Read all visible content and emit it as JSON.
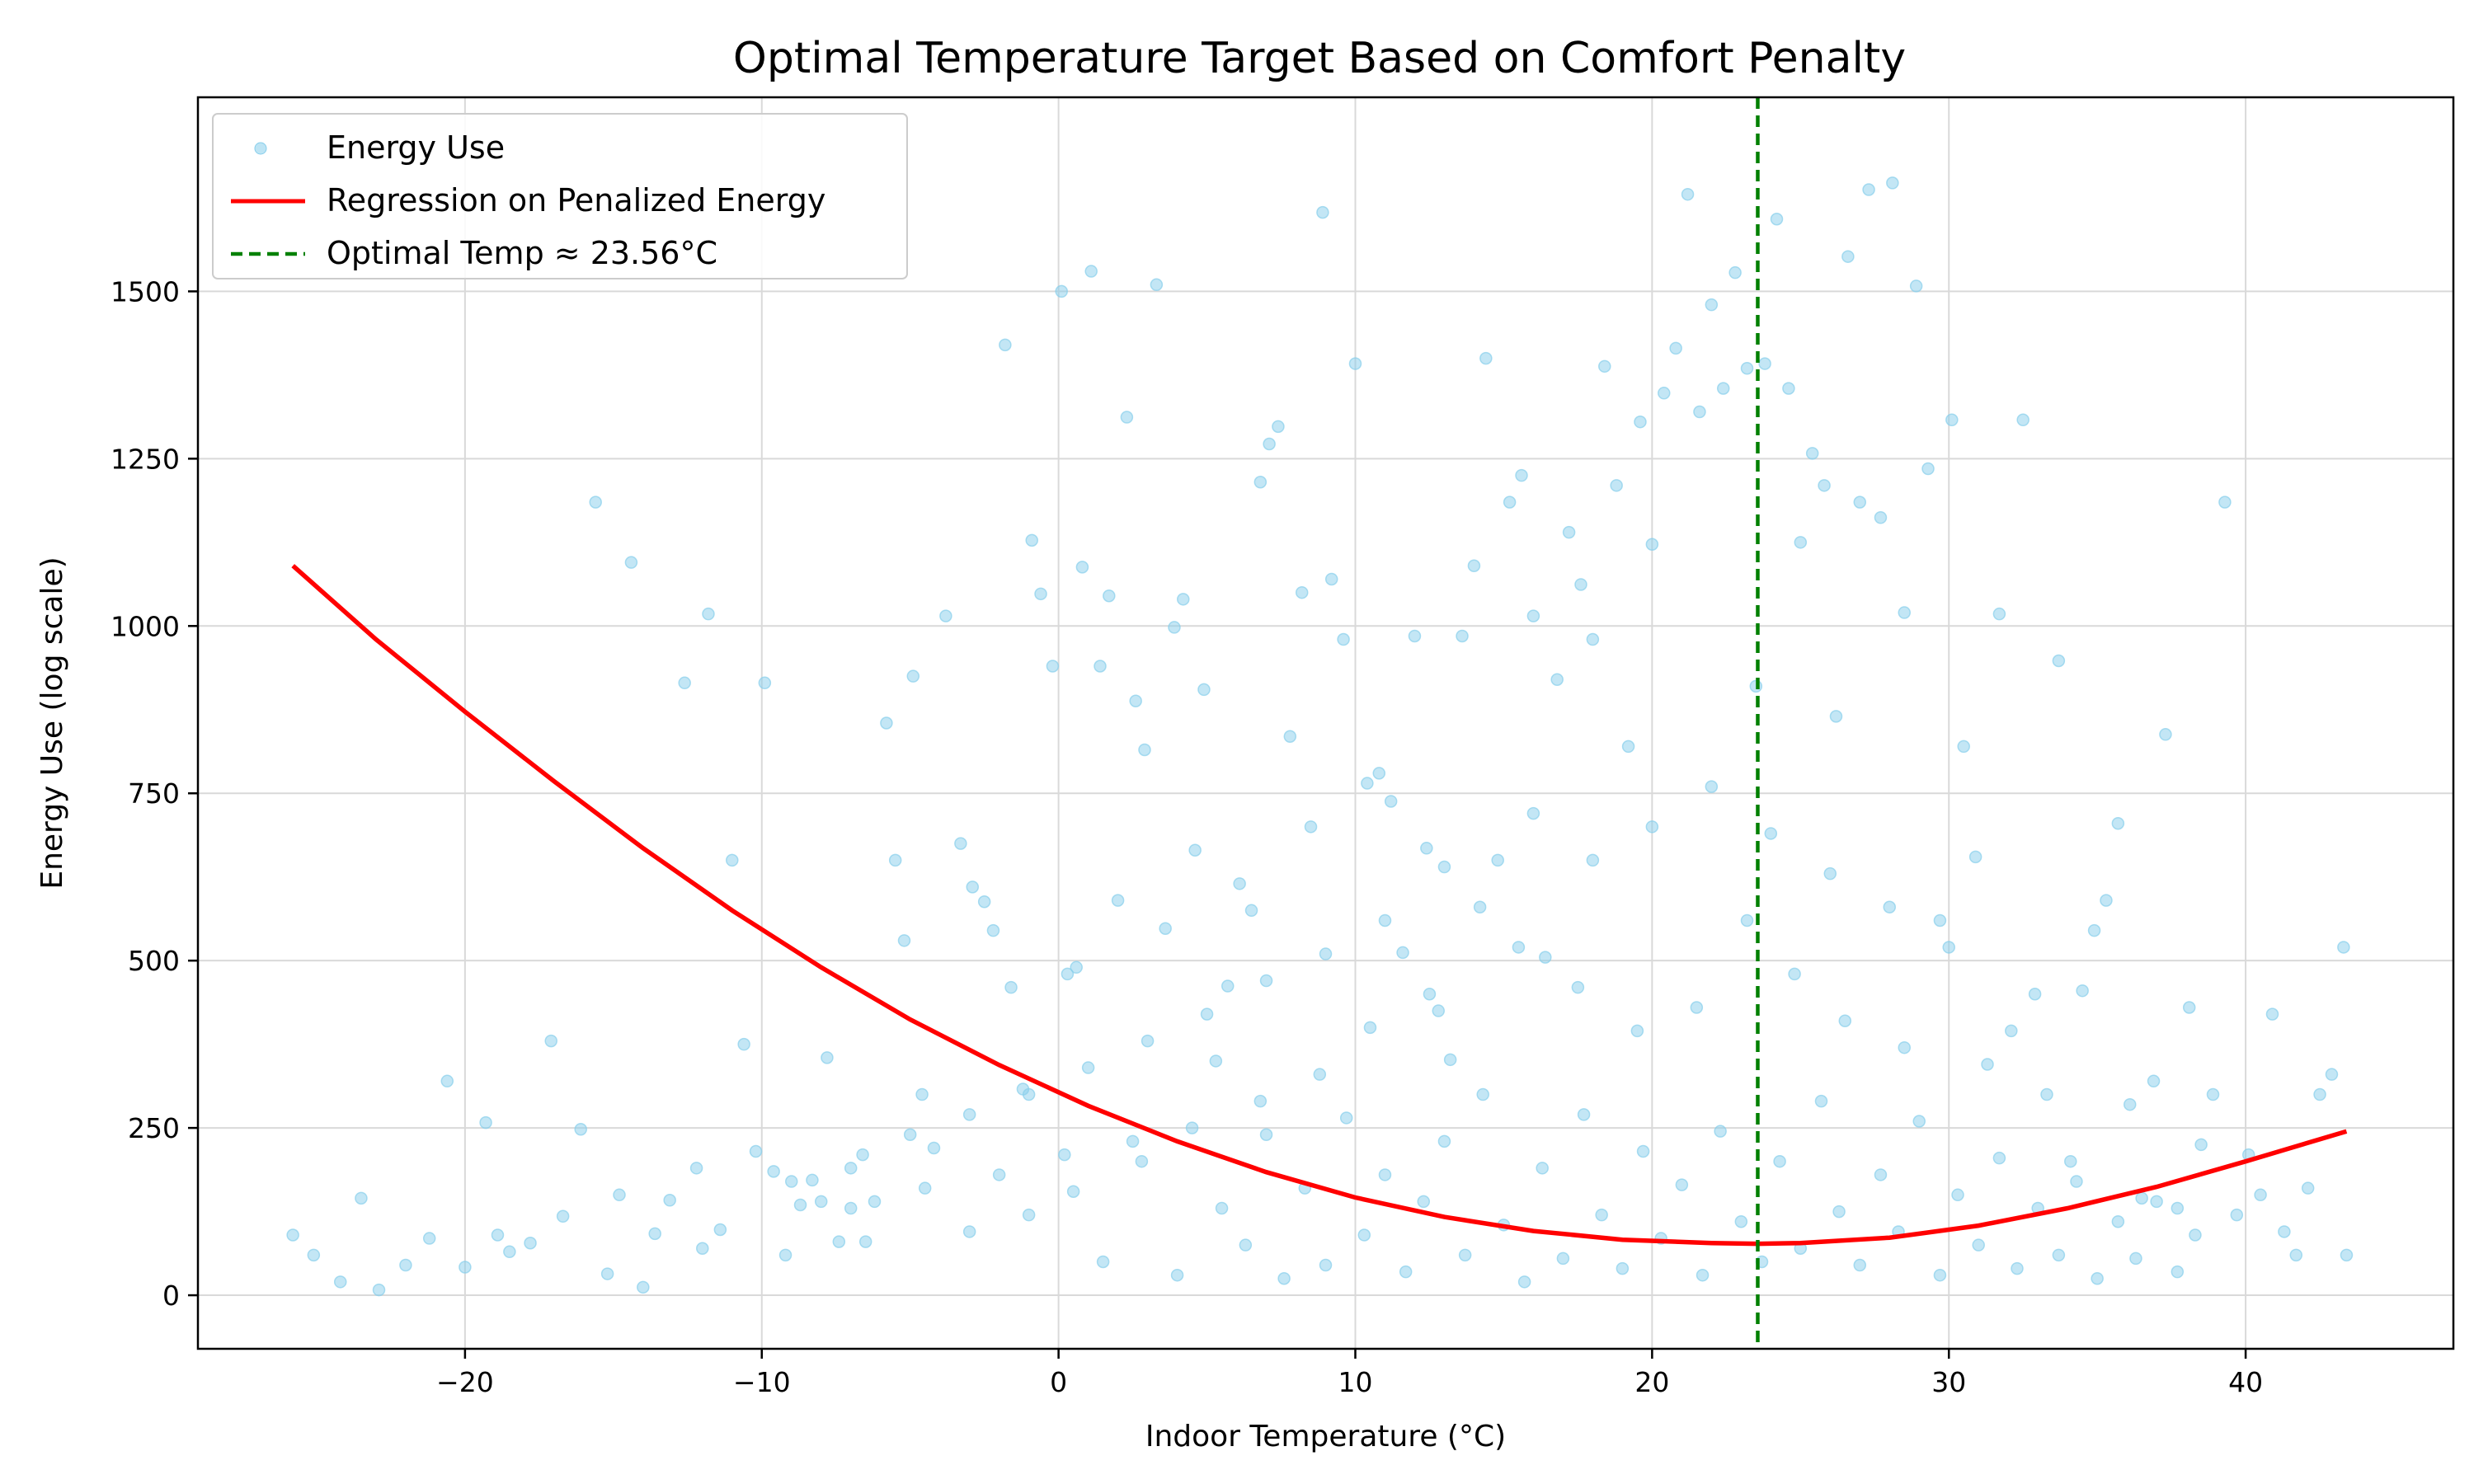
{
  "chart_data": {
    "type": "scatter",
    "title": "Optimal Temperature Target Based on Comfort Penalty",
    "xlabel": "Indoor Temperature (°C)",
    "ylabel": "Energy Use (log scale)",
    "xlim": [
      -29,
      47
    ],
    "ylim": [
      -80,
      1790
    ],
    "x_ticks": [
      -20,
      -10,
      0,
      10,
      20,
      30,
      40
    ],
    "x_tick_labels": [
      "−20",
      "−10",
      "0",
      "10",
      "20",
      "30",
      "40"
    ],
    "y_ticks": [
      0,
      250,
      500,
      750,
      1000,
      1250,
      1500
    ],
    "y_tick_labels": [
      "0",
      "250",
      "500",
      "750",
      "1000",
      "1250",
      "1500"
    ],
    "grid": true,
    "legend_position": "top-left",
    "legend": [
      {
        "label": "Energy Use",
        "kind": "scatter",
        "color": "#87CEEB"
      },
      {
        "label": "Regression on Penalized Energy",
        "kind": "line",
        "color": "#ff0000"
      },
      {
        "label": "Optimal Temp ≈ 23.56°C",
        "kind": "dashed",
        "color": "#008000"
      }
    ],
    "series": [
      {
        "name": "Energy Use",
        "type": "scatter",
        "color": "#87CEEB",
        "points": [
          [
            -25.8,
            90
          ],
          [
            -25.1,
            60
          ],
          [
            -24.2,
            20
          ],
          [
            -23.5,
            145
          ],
          [
            -22.9,
            8
          ],
          [
            -22.0,
            45
          ],
          [
            -21.2,
            85
          ],
          [
            -20.6,
            320
          ],
          [
            -20.0,
            42
          ],
          [
            -19.3,
            258
          ],
          [
            -18.9,
            90
          ],
          [
            -18.5,
            65
          ],
          [
            -17.8,
            78
          ],
          [
            -17.1,
            380
          ],
          [
            -16.7,
            118
          ],
          [
            -16.1,
            248
          ],
          [
            -15.6,
            1185
          ],
          [
            -15.2,
            32
          ],
          [
            -14.8,
            150
          ],
          [
            -14.4,
            1095
          ],
          [
            -14.0,
            12
          ],
          [
            -13.6,
            92
          ],
          [
            -13.1,
            142
          ],
          [
            -12.6,
            915
          ],
          [
            -12.2,
            190
          ],
          [
            -11.8,
            1018
          ],
          [
            -11.4,
            98
          ],
          [
            -11.0,
            650
          ],
          [
            -10.6,
            375
          ],
          [
            -10.2,
            215
          ],
          [
            -9.9,
            915
          ],
          [
            -9.6,
            185
          ],
          [
            -9.2,
            60
          ],
          [
            -8.7,
            135
          ],
          [
            -8.3,
            172
          ],
          [
            -7.8,
            355
          ],
          [
            -7.4,
            80
          ],
          [
            -7.0,
            130
          ],
          [
            -6.6,
            210
          ],
          [
            -6.2,
            140
          ],
          [
            -5.8,
            855
          ],
          [
            -5.5,
            650
          ],
          [
            -5.2,
            530
          ],
          [
            -4.9,
            925
          ],
          [
            -4.6,
            300
          ],
          [
            -4.2,
            220
          ],
          [
            -3.8,
            1015
          ],
          [
            -3.3,
            675
          ],
          [
            -2.9,
            610
          ],
          [
            -2.5,
            588
          ],
          [
            -2.2,
            545
          ],
          [
            -1.8,
            1420
          ],
          [
            -1.6,
            460
          ],
          [
            -1.2,
            308
          ],
          [
            -0.9,
            1128
          ],
          [
            -0.6,
            1048
          ],
          [
            -0.2,
            940
          ],
          [
            0.1,
            1500
          ],
          [
            0.3,
            480
          ],
          [
            0.6,
            490
          ],
          [
            0.8,
            1088
          ],
          [
            1.1,
            1530
          ],
          [
            1.4,
            940
          ],
          [
            1.7,
            1045
          ],
          [
            2.0,
            590
          ],
          [
            2.3,
            1312
          ],
          [
            2.6,
            888
          ],
          [
            2.9,
            815
          ],
          [
            3.3,
            1510
          ],
          [
            3.6,
            548
          ],
          [
            3.9,
            998
          ],
          [
            4.2,
            1040
          ],
          [
            4.6,
            665
          ],
          [
            4.9,
            905
          ],
          [
            5.3,
            350
          ],
          [
            5.7,
            462
          ],
          [
            6.1,
            615
          ],
          [
            6.5,
            575
          ],
          [
            6.8,
            1215
          ],
          [
            7.1,
            1272
          ],
          [
            7.4,
            1298
          ],
          [
            7.8,
            835
          ],
          [
            8.2,
            1050
          ],
          [
            8.5,
            700
          ],
          [
            8.9,
            1618
          ],
          [
            9.2,
            1070
          ],
          [
            9.6,
            980
          ],
          [
            10.0,
            1392
          ],
          [
            10.4,
            765
          ],
          [
            10.8,
            780
          ],
          [
            11.2,
            738
          ],
          [
            11.6,
            512
          ],
          [
            12.0,
            985
          ],
          [
            12.4,
            668
          ],
          [
            12.8,
            425
          ],
          [
            13.2,
            352
          ],
          [
            13.6,
            985
          ],
          [
            14.0,
            1090
          ],
          [
            14.4,
            1400
          ],
          [
            14.8,
            650
          ],
          [
            15.2,
            1185
          ],
          [
            15.6,
            1225
          ],
          [
            16.0,
            1015
          ],
          [
            16.4,
            505
          ],
          [
            16.8,
            920
          ],
          [
            17.2,
            1140
          ],
          [
            17.6,
            1062
          ],
          [
            18.0,
            980
          ],
          [
            18.4,
            1388
          ],
          [
            18.8,
            1210
          ],
          [
            19.2,
            820
          ],
          [
            19.6,
            1305
          ],
          [
            20.0,
            1122
          ],
          [
            20.4,
            1348
          ],
          [
            20.8,
            1415
          ],
          [
            21.2,
            1645
          ],
          [
            21.6,
            1320
          ],
          [
            22.0,
            1480
          ],
          [
            22.4,
            1355
          ],
          [
            22.8,
            1528
          ],
          [
            23.2,
            1385
          ],
          [
            23.5,
            910
          ],
          [
            23.8,
            1392
          ],
          [
            24.2,
            1608
          ],
          [
            24.6,
            1355
          ],
          [
            25.0,
            1125
          ],
          [
            25.4,
            1258
          ],
          [
            25.8,
            1210
          ],
          [
            26.2,
            865
          ],
          [
            26.6,
            1552
          ],
          [
            27.0,
            1185
          ],
          [
            27.3,
            1652
          ],
          [
            27.7,
            1162
          ],
          [
            28.1,
            1662
          ],
          [
            28.5,
            1020
          ],
          [
            28.9,
            1508
          ],
          [
            29.3,
            1235
          ],
          [
            29.7,
            560
          ],
          [
            30.1,
            1308
          ],
          [
            30.5,
            820
          ],
          [
            30.9,
            655
          ],
          [
            31.3,
            345
          ],
          [
            31.7,
            1018
          ],
          [
            32.1,
            395
          ],
          [
            32.5,
            1308
          ],
          [
            32.9,
            450
          ],
          [
            33.3,
            300
          ],
          [
            33.7,
            948
          ],
          [
            34.1,
            200
          ],
          [
            34.5,
            455
          ],
          [
            34.9,
            545
          ],
          [
            35.3,
            590
          ],
          [
            35.7,
            705
          ],
          [
            36.1,
            285
          ],
          [
            36.5,
            145
          ],
          [
            36.9,
            320
          ],
          [
            37.3,
            838
          ],
          [
            37.7,
            130
          ],
          [
            38.1,
            430
          ],
          [
            38.5,
            225
          ],
          [
            38.9,
            300
          ],
          [
            39.3,
            1185
          ],
          [
            39.7,
            120
          ],
          [
            40.1,
            210
          ],
          [
            40.5,
            150
          ],
          [
            40.9,
            420
          ],
          [
            41.3,
            95
          ],
          [
            41.7,
            60
          ],
          [
            42.1,
            160
          ],
          [
            42.5,
            300
          ],
          [
            42.9,
            330
          ],
          [
            43.3,
            520
          ],
          [
            43.4,
            60
          ],
          [
            -6.5,
            80
          ],
          [
            -3.0,
            95
          ],
          [
            -1.0,
            120
          ],
          [
            0.5,
            155
          ],
          [
            1.5,
            50
          ],
          [
            2.8,
            200
          ],
          [
            4.0,
            30
          ],
          [
            5.5,
            130
          ],
          [
            6.3,
            75
          ],
          [
            7.0,
            240
          ],
          [
            7.6,
            25
          ],
          [
            8.3,
            160
          ],
          [
            9.0,
            45
          ],
          [
            9.7,
            265
          ],
          [
            10.3,
            90
          ],
          [
            11.0,
            180
          ],
          [
            11.7,
            35
          ],
          [
            12.3,
            140
          ],
          [
            13.0,
            230
          ],
          [
            13.7,
            60
          ],
          [
            14.3,
            300
          ],
          [
            15.0,
            105
          ],
          [
            15.7,
            20
          ],
          [
            16.3,
            190
          ],
          [
            17.0,
            55
          ],
          [
            17.7,
            270
          ],
          [
            18.3,
            120
          ],
          [
            19.0,
            40
          ],
          [
            19.7,
            215
          ],
          [
            20.3,
            85
          ],
          [
            21.0,
            165
          ],
          [
            21.7,
            30
          ],
          [
            22.3,
            245
          ],
          [
            23.0,
            110
          ],
          [
            23.7,
            50
          ],
          [
            24.3,
            200
          ],
          [
            25.0,
            70
          ],
          [
            25.7,
            290
          ],
          [
            26.3,
            125
          ],
          [
            27.0,
            45
          ],
          [
            27.7,
            180
          ],
          [
            28.3,
            95
          ],
          [
            29.0,
            260
          ],
          [
            29.7,
            30
          ],
          [
            30.3,
            150
          ],
          [
            31.0,
            75
          ],
          [
            31.7,
            205
          ],
          [
            32.3,
            40
          ],
          [
            33.0,
            130
          ],
          [
            33.7,
            60
          ],
          [
            34.3,
            170
          ],
          [
            35.0,
            25
          ],
          [
            35.7,
            110
          ],
          [
            36.3,
            55
          ],
          [
            37.0,
            140
          ],
          [
            37.7,
            35
          ],
          [
            38.3,
            90
          ],
          [
            15.5,
            520
          ],
          [
            17.5,
            460
          ],
          [
            19.5,
            395
          ],
          [
            21.5,
            430
          ],
          [
            23.2,
            560
          ],
          [
            24.8,
            480
          ],
          [
            26.5,
            410
          ],
          [
            28.5,
            370
          ],
          [
            14.2,
            580
          ],
          [
            12.5,
            450
          ],
          [
            10.5,
            400
          ],
          [
            8.8,
            330
          ],
          [
            6.8,
            290
          ],
          [
            4.5,
            250
          ],
          [
            2.5,
            230
          ],
          [
            0.2,
            210
          ],
          [
            -2.0,
            180
          ],
          [
            -4.5,
            160
          ],
          [
            -8.0,
            140
          ],
          [
            -12.0,
            70
          ],
          [
            16.0,
            720
          ],
          [
            18.0,
            650
          ],
          [
            20.0,
            700
          ],
          [
            22.0,
            760
          ],
          [
            24.0,
            690
          ],
          [
            26.0,
            630
          ],
          [
            28.0,
            580
          ],
          [
            30.0,
            520
          ],
          [
            13.0,
            640
          ],
          [
            11.0,
            560
          ],
          [
            9.0,
            510
          ],
          [
            7.0,
            470
          ],
          [
            5.0,
            420
          ],
          [
            3.0,
            380
          ],
          [
            1.0,
            340
          ],
          [
            -1.0,
            300
          ],
          [
            -3.0,
            270
          ],
          [
            -5.0,
            240
          ],
          [
            -7.0,
            190
          ],
          [
            -9.0,
            170
          ]
        ]
      },
      {
        "name": "Regression on Penalized Energy",
        "type": "line",
        "color": "#ff0000",
        "points": [
          [
            -25.8,
            1090
          ],
          [
            -23.0,
            980
          ],
          [
            -20.0,
            872
          ],
          [
            -17.0,
            768
          ],
          [
            -14.0,
            668
          ],
          [
            -11.0,
            575
          ],
          [
            -8.0,
            490
          ],
          [
            -5.0,
            412
          ],
          [
            -2.0,
            344
          ],
          [
            1.0,
            283
          ],
          [
            4.0,
            230
          ],
          [
            7.0,
            184
          ],
          [
            10.0,
            146
          ],
          [
            13.0,
            117
          ],
          [
            16.0,
            96
          ],
          [
            19.0,
            83
          ],
          [
            22.0,
            78
          ],
          [
            23.56,
            77
          ],
          [
            25.0,
            78
          ],
          [
            28.0,
            86
          ],
          [
            31.0,
            104
          ],
          [
            34.0,
            130
          ],
          [
            37.0,
            162
          ],
          [
            40.0,
            200
          ],
          [
            43.4,
            245
          ]
        ]
      },
      {
        "name": "Optimal Temp ≈ 23.56°C",
        "type": "vline",
        "color": "#008000",
        "x": 23.56
      }
    ]
  }
}
